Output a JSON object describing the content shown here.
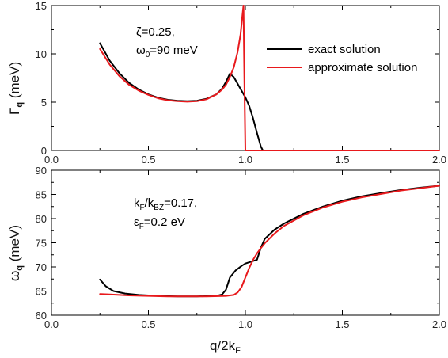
{
  "chart_data": [
    {
      "type": "line",
      "xlim": [
        0.0,
        2.0
      ],
      "ylim": [
        0,
        15
      ],
      "x_ticks": [
        "0.0",
        "0.5",
        "1.0",
        "1.5",
        "2.0"
      ],
      "y_ticks": [
        "0",
        "5",
        "10",
        "15"
      ],
      "ylabel_main": "Γ",
      "ylabel_sub": "q",
      "ylabel_unit": " (meV)",
      "annotation": {
        "line1": "ζ=0.25,",
        "line2_main": "ω",
        "line2_sub": "0",
        "line2_rest": "=90 meV"
      },
      "legend_position": "top-right",
      "series": [
        {
          "name": "exact solution",
          "color": "#000000",
          "x": [
            0.25,
            0.3,
            0.35,
            0.4,
            0.45,
            0.5,
            0.55,
            0.6,
            0.65,
            0.7,
            0.75,
            0.8,
            0.85,
            0.88,
            0.9,
            0.92,
            0.94,
            0.96,
            0.98,
            1.0,
            1.02,
            1.04,
            1.06,
            1.08,
            1.09
          ],
          "y": [
            11.1,
            9.3,
            8.0,
            7.0,
            6.3,
            5.8,
            5.45,
            5.25,
            5.15,
            5.1,
            5.15,
            5.35,
            5.8,
            6.4,
            7.1,
            7.95,
            7.6,
            6.9,
            6.2,
            5.5,
            4.6,
            3.3,
            1.8,
            0.4,
            0.0
          ]
        },
        {
          "name": "approximate solution",
          "color": "#e8191c",
          "x": [
            0.25,
            0.3,
            0.35,
            0.4,
            0.45,
            0.5,
            0.55,
            0.6,
            0.65,
            0.7,
            0.75,
            0.8,
            0.85,
            0.88,
            0.9,
            0.92,
            0.94,
            0.96,
            0.975,
            0.985,
            0.99,
            0.995,
            1.0,
            1.005,
            1.5,
            2.0
          ],
          "y": [
            10.5,
            8.9,
            7.7,
            6.8,
            6.2,
            5.75,
            5.4,
            5.2,
            5.1,
            5.05,
            5.1,
            5.3,
            5.8,
            6.3,
            6.8,
            7.6,
            8.6,
            10.2,
            12.0,
            14.0,
            15.0,
            7.0,
            0.0,
            0.0,
            0.0,
            0.0
          ]
        }
      ]
    },
    {
      "type": "line",
      "xlim": [
        0.0,
        2.0
      ],
      "ylim": [
        60,
        90
      ],
      "x_ticks": [
        "0.0",
        "0.5",
        "1.0",
        "1.5",
        "2.0"
      ],
      "y_ticks": [
        "60",
        "65",
        "70",
        "75",
        "80",
        "85",
        "90"
      ],
      "ylabel_main": "ω",
      "ylabel_sub": "q",
      "ylabel_unit": " (meV)",
      "xlabel_main": "q/2k",
      "xlabel_sub": "F",
      "annotation": {
        "line1_a": "k",
        "line1_sub1": "F",
        "line1_b": "/k",
        "line1_sub2": "BZ",
        "line1_c": "=0.17,",
        "line2_main": "ε",
        "line2_sub": "F",
        "line2_rest": "=0.2 eV"
      },
      "series": [
        {
          "color": "#000000",
          "x": [
            0.25,
            0.28,
            0.32,
            0.38,
            0.45,
            0.55,
            0.65,
            0.75,
            0.85,
            0.88,
            0.9,
            0.92,
            0.95,
            0.98,
            1.0,
            1.03,
            1.06,
            1.08,
            1.1,
            1.15,
            1.2,
            1.3,
            1.4,
            1.5,
            1.6,
            1.7,
            1.8,
            1.9,
            2.0
          ],
          "y": [
            67.4,
            66.0,
            65.0,
            64.5,
            64.2,
            64.0,
            63.9,
            63.9,
            64.0,
            64.3,
            65.3,
            67.8,
            69.3,
            70.2,
            70.7,
            71.1,
            71.5,
            74.0,
            75.8,
            77.7,
            79.0,
            81.0,
            82.5,
            83.7,
            84.6,
            85.3,
            85.9,
            86.4,
            86.8
          ]
        },
        {
          "color": "#e8191c",
          "x": [
            0.25,
            0.3,
            0.4,
            0.5,
            0.6,
            0.7,
            0.8,
            0.9,
            0.94,
            0.96,
            0.98,
            1.0,
            1.02,
            1.04,
            1.06,
            1.08,
            1.1,
            1.15,
            1.2,
            1.3,
            1.4,
            1.5,
            1.6,
            1.7,
            1.8,
            1.9,
            2.0
          ],
          "y": [
            64.4,
            64.3,
            64.1,
            64.0,
            63.9,
            63.9,
            63.9,
            64.0,
            64.2,
            64.7,
            65.8,
            67.8,
            69.8,
            71.5,
            72.8,
            73.9,
            74.9,
            76.9,
            78.5,
            80.7,
            82.3,
            83.5,
            84.4,
            85.1,
            85.8,
            86.3,
            86.8
          ]
        }
      ]
    }
  ]
}
